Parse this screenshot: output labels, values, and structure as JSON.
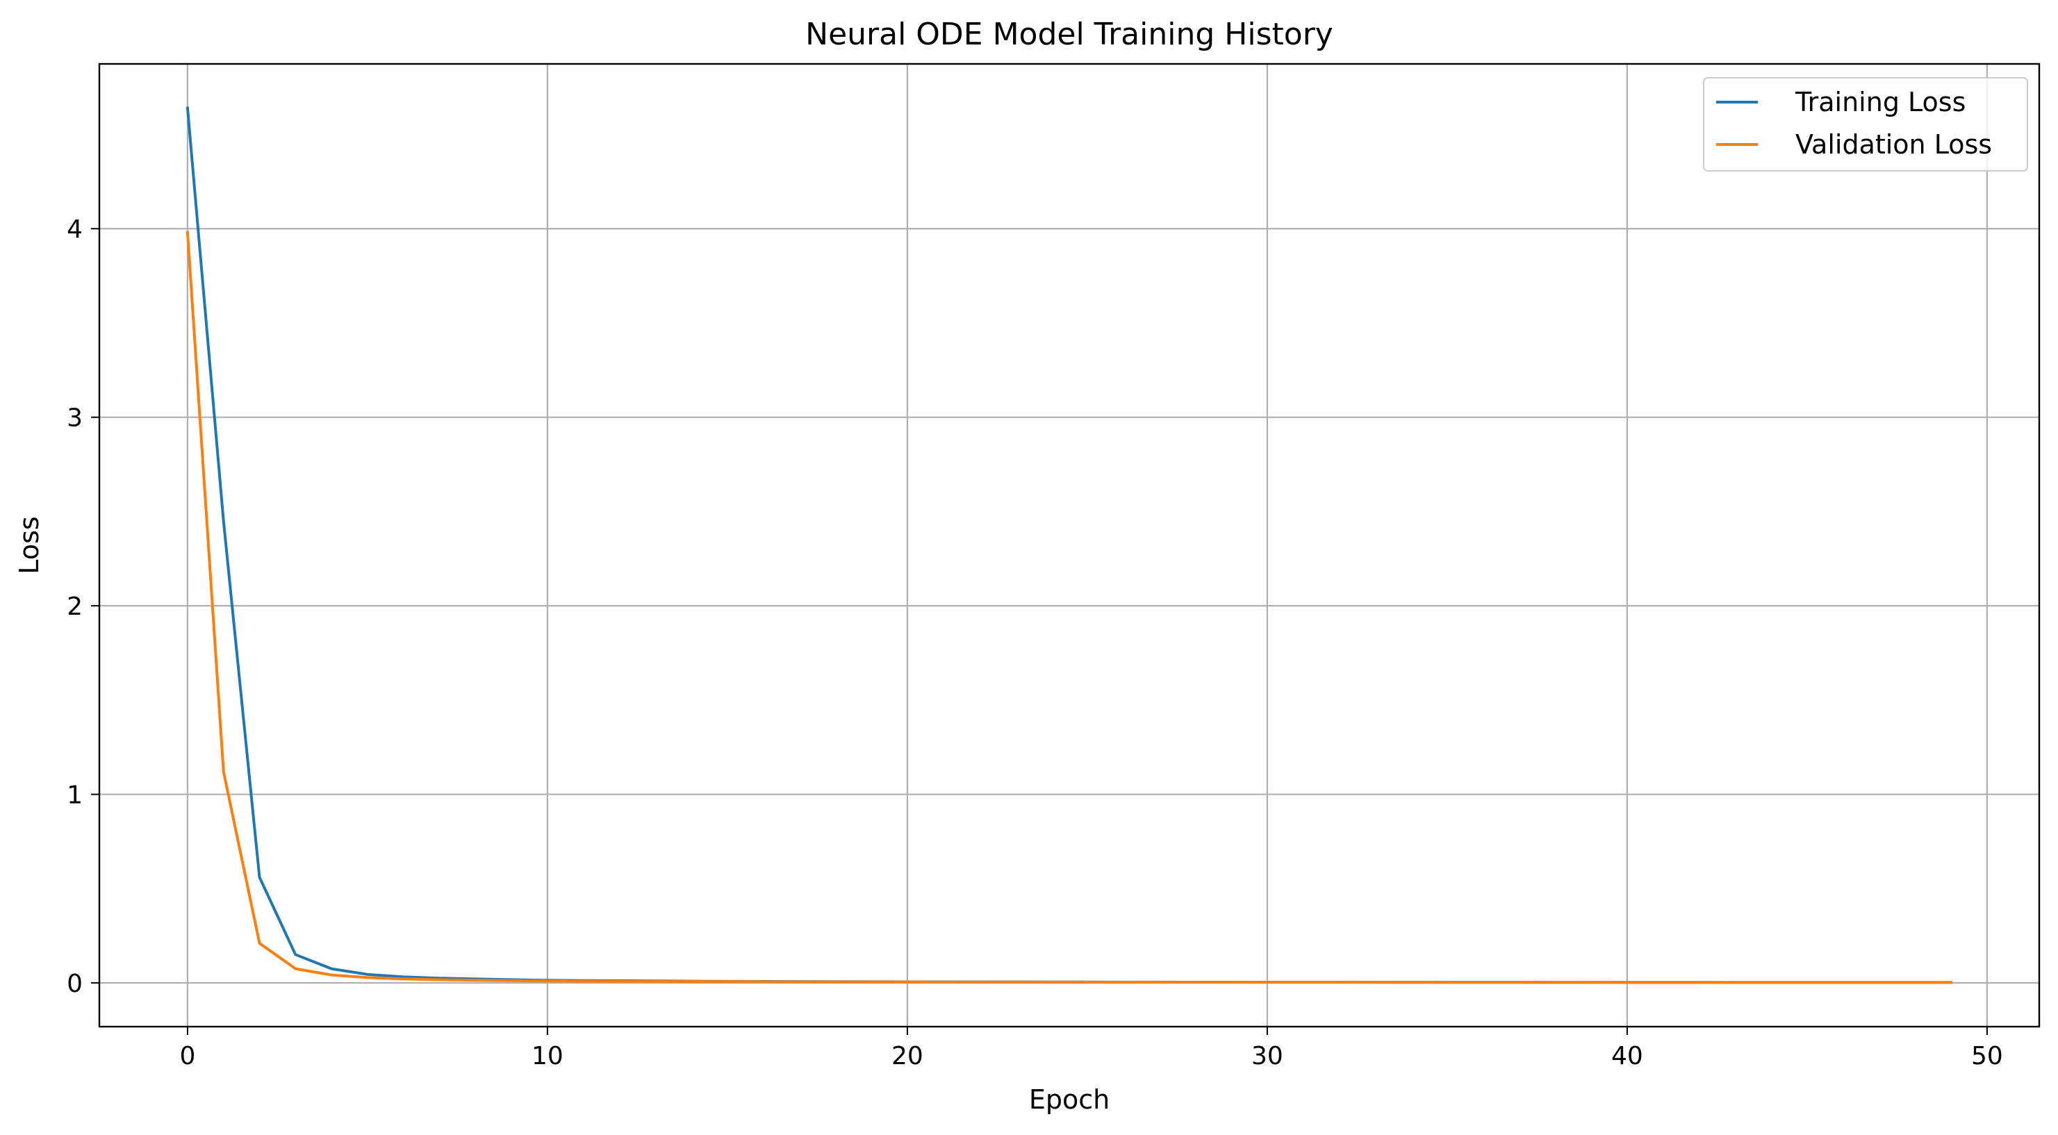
{
  "chart_data": {
    "type": "line",
    "title": "Neural ODE Model Training History",
    "xlabel": "Epoch",
    "ylabel": "Loss",
    "xlim": [
      -2.45,
      51.45
    ],
    "ylim": [
      -0.232,
      4.874
    ],
    "xticks": [
      0,
      10,
      20,
      30,
      40,
      50
    ],
    "yticks": [
      0,
      1,
      2,
      3,
      4
    ],
    "grid": true,
    "legend_position": "top-right",
    "x": [
      0,
      1,
      2,
      3,
      4,
      5,
      6,
      7,
      8,
      9,
      10,
      11,
      12,
      13,
      14,
      15,
      16,
      17,
      18,
      19,
      20,
      21,
      22,
      23,
      24,
      25,
      26,
      27,
      28,
      29,
      30,
      31,
      32,
      33,
      34,
      35,
      36,
      37,
      38,
      39,
      40,
      41,
      42,
      43,
      44,
      45,
      46,
      47,
      48,
      49
    ],
    "series": [
      {
        "name": "Training Loss",
        "color": "#1f77b4",
        "values": [
          4.64,
          2.45,
          0.56,
          0.15,
          0.075,
          0.045,
          0.032,
          0.025,
          0.021,
          0.017,
          0.014,
          0.012,
          0.011,
          0.01,
          0.009,
          0.008,
          0.0075,
          0.007,
          0.0065,
          0.006,
          0.0058,
          0.0055,
          0.0053,
          0.005,
          0.0048,
          0.0046,
          0.0044,
          0.0042,
          0.004,
          0.0039,
          0.0038,
          0.0037,
          0.0036,
          0.0035,
          0.0034,
          0.0033,
          0.0032,
          0.0031,
          0.003,
          0.0029,
          0.0028,
          0.0027,
          0.0027,
          0.0026,
          0.0025,
          0.0025,
          0.0024,
          0.0024,
          0.0023,
          0.0023
        ]
      },
      {
        "name": "Validation Loss",
        "color": "#ff7f0e",
        "values": [
          3.98,
          1.12,
          0.21,
          0.075,
          0.042,
          0.028,
          0.021,
          0.017,
          0.014,
          0.012,
          0.01,
          0.009,
          0.008,
          0.0075,
          0.007,
          0.0065,
          0.006,
          0.0058,
          0.0055,
          0.0052,
          0.005,
          0.0048,
          0.0046,
          0.0044,
          0.0042,
          0.004,
          0.0039,
          0.0038,
          0.0037,
          0.0036,
          0.0035,
          0.0034,
          0.0033,
          0.0032,
          0.0031,
          0.003,
          0.0029,
          0.0028,
          0.0028,
          0.0027,
          0.0026,
          0.0026,
          0.0025,
          0.0025,
          0.0024,
          0.0024,
          0.0023,
          0.0023,
          0.0022,
          0.0022
        ]
      }
    ]
  }
}
